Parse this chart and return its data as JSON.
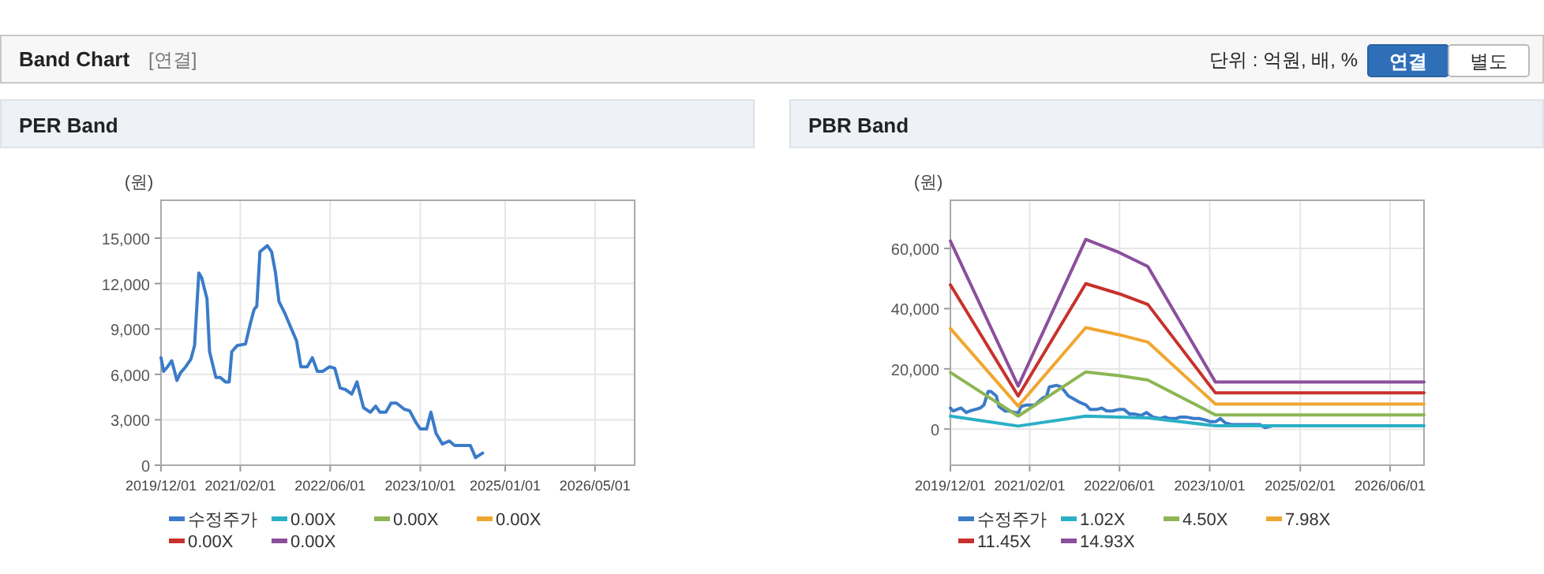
{
  "chart_data": [
    {
      "type": "other",
      "title": "Band Chart",
      "annotations": [
        "[연결]",
        "단위 : 억원, 배, %",
        "연결",
        "별도"
      ]
    },
    {
      "type": "line",
      "title": "PER Band",
      "ylabel": "(원)",
      "grid": true,
      "legend": "bottom",
      "xlim": [
        "2019-12-01",
        "2026-12-01"
      ],
      "xticks": [
        {
          "value": "2019-12-01",
          "label": "2019/12/01"
        },
        {
          "value": "2021-02-01",
          "label": "2021/02/01"
        },
        {
          "value": "2022-06-01",
          "label": "2022/06/01"
        },
        {
          "value": "2023-10-01",
          "label": "2023/10/01"
        },
        {
          "value": "2025-01-01",
          "label": "2025/01/01"
        },
        {
          "value": "2026-05-01",
          "label": "2026/05/01"
        }
      ],
      "ylim": [
        0,
        17500
      ],
      "yticks": [
        0,
        {
          "value": 3000,
          "label": "3,000"
        },
        {
          "value": 6000,
          "label": "6,000"
        },
        {
          "value": 9000,
          "label": "9,000"
        },
        {
          "value": 12000,
          "label": "12,000"
        },
        {
          "value": 15000,
          "label": "15,000"
        }
      ],
      "series": [
        {
          "name": "수정주가",
          "color": "#3b7bc9",
          "x": [
            "2019-12-01",
            "2019-12-15",
            "2020-01-05",
            "2020-01-28",
            "2020-02-25",
            "2020-03-15",
            "2020-04-12",
            "2020-05-10",
            "2020-05-30",
            "2020-06-22",
            "2020-07-07",
            "2020-08-05",
            "2020-08-19",
            "2020-09-22",
            "2020-10-15",
            "2020-11-13",
            "2020-12-03",
            "2020-12-17",
            "2021-01-15",
            "2021-03-01",
            "2021-03-28",
            "2021-04-17",
            "2021-05-01",
            "2021-05-18",
            "2021-06-27",
            "2021-07-20",
            "2021-08-10",
            "2021-08-29",
            "2021-09-27",
            "2021-10-25",
            "2021-12-02",
            "2021-12-25",
            "2022-01-28",
            "2022-02-25",
            "2022-03-24",
            "2022-04-22",
            "2022-05-29",
            "2022-06-26",
            "2022-07-25",
            "2022-08-22",
            "2022-09-26",
            "2022-10-24",
            "2022-11-28",
            "2023-01-04",
            "2023-02-02",
            "2023-02-25",
            "2023-03-29",
            "2023-04-26",
            "2023-05-25",
            "2023-07-06",
            "2023-08-04",
            "2023-09-08",
            "2023-09-30",
            "2023-11-04",
            "2023-11-27",
            "2023-12-25",
            "2024-01-28",
            "2024-03-05",
            "2024-04-03",
            "2024-06-27",
            "2024-07-25",
            "2024-09-01"
          ],
          "values": [
            7100,
            6200,
            6500,
            6900,
            5600,
            6100,
            6500,
            7000,
            7900,
            12700,
            12400,
            11000,
            7500,
            5800,
            5800,
            5500,
            5500,
            7500,
            7900,
            8000,
            9400,
            10300,
            10500,
            14100,
            14500,
            14100,
            12700,
            10800,
            10100,
            9300,
            8200,
            6500,
            6500,
            7100,
            6200,
            6200,
            6500,
            6400,
            5100,
            5000,
            4700,
            5500,
            3800,
            3500,
            3900,
            3500,
            3500,
            4100,
            4100,
            3700,
            3600,
            2800,
            2400,
            2400,
            3500,
            2100,
            1400,
            1600,
            1300,
            1300,
            500,
            800
          ]
        },
        {
          "name": "0.00X",
          "color": "#2ab0c5"
        },
        {
          "name": "0.00X",
          "color": "#8db654"
        },
        {
          "name": "0.00X",
          "color": "#f0a630"
        },
        {
          "name": "0.00X",
          "color": "#c8312c"
        },
        {
          "name": "0.00X",
          "color": "#8c4f9c"
        }
      ]
    },
    {
      "type": "line",
      "title": "PBR Band",
      "ylabel": "(원)",
      "grid": true,
      "legend": "bottom",
      "xlim": [
        "2019-12-01",
        "2026-12-01"
      ],
      "xticks": [
        {
          "value": "2019-12-01",
          "label": "2019/12/01"
        },
        {
          "value": "2021-02-01",
          "label": "2021/02/01"
        },
        {
          "value": "2022-06-01",
          "label": "2022/06/01"
        },
        {
          "value": "2023-10-01",
          "label": "2023/10/01"
        },
        {
          "value": "2025-02-01",
          "label": "2025/02/01"
        },
        {
          "value": "2026-06-01",
          "label": "2026/06/01"
        }
      ],
      "ylim": [
        -12000,
        76000
      ],
      "yticks": [
        0,
        {
          "value": 20000,
          "label": "20,000"
        },
        {
          "value": 40000,
          "label": "40,000"
        },
        {
          "value": 60000,
          "label": "60,000"
        }
      ],
      "series": [
        {
          "name": "수정주가",
          "color": "#3b7bc9",
          "x": [
            "2019-12-01",
            "2019-12-15",
            "2020-01-05",
            "2020-01-28",
            "2020-02-25",
            "2020-03-15",
            "2020-04-12",
            "2020-05-10",
            "2020-05-30",
            "2020-06-22",
            "2020-07-07",
            "2020-08-05",
            "2020-08-19",
            "2020-09-22",
            "2020-10-15",
            "2020-11-13",
            "2020-12-03",
            "2020-12-17",
            "2021-01-15",
            "2021-03-01",
            "2021-03-28",
            "2021-04-17",
            "2021-05-01",
            "2021-05-18",
            "2021-06-27",
            "2021-07-20",
            "2021-08-10",
            "2021-08-29",
            "2021-09-27",
            "2021-10-25",
            "2021-12-02",
            "2021-12-25",
            "2022-01-28",
            "2022-02-25",
            "2022-03-24",
            "2022-04-22",
            "2022-05-29",
            "2022-06-26",
            "2022-07-25",
            "2022-08-22",
            "2022-09-26",
            "2022-10-24",
            "2022-11-28",
            "2023-01-04",
            "2023-02-02",
            "2023-02-25",
            "2023-03-29",
            "2023-04-26",
            "2023-05-25",
            "2023-07-06",
            "2023-08-04",
            "2023-09-08",
            "2023-09-30",
            "2023-11-04",
            "2023-11-27",
            "2023-12-25",
            "2024-01-28",
            "2024-03-05",
            "2024-04-03",
            "2024-06-27",
            "2024-07-25",
            "2024-09-01"
          ],
          "values": [
            7000,
            6000,
            6500,
            7000,
            5500,
            6000,
            6500,
            7000,
            8000,
            12500,
            12500,
            11000,
            7500,
            6000,
            6000,
            5500,
            5500,
            7500,
            8000,
            8000,
            9500,
            10500,
            10500,
            14000,
            14500,
            14000,
            12500,
            11000,
            10000,
            9000,
            8000,
            6500,
            6500,
            7000,
            6000,
            6000,
            6500,
            6500,
            5000,
            5000,
            4500,
            5500,
            4000,
            3500,
            4000,
            3500,
            3500,
            4000,
            4000,
            3500,
            3500,
            3000,
            2500,
            2500,
            3500,
            2000,
            1500,
            1500,
            1500,
            1500,
            500,
            1000
          ]
        },
        {
          "name": "1.02X",
          "color": "#2ab0c5",
          "x": [
            "2019-12-01",
            "2020-12-01",
            "2021-12-01",
            "2022-06-01",
            "2022-11-01",
            "2023-11-01",
            "2026-12-01"
          ],
          "values": [
            4300,
            1000,
            4300,
            4000,
            3700,
            1100,
            1100
          ]
        },
        {
          "name": "4.50X",
          "color": "#8db654",
          "x": [
            "2019-12-01",
            "2020-12-01",
            "2021-12-01",
            "2022-06-01",
            "2022-11-01",
            "2023-11-01",
            "2026-12-01"
          ],
          "values": [
            18800,
            4300,
            19000,
            17700,
            16300,
            4700,
            4700
          ]
        },
        {
          "name": "7.98X",
          "color": "#f0a630",
          "x": [
            "2019-12-01",
            "2020-12-01",
            "2021-12-01",
            "2022-06-01",
            "2022-11-01",
            "2023-11-01",
            "2026-12-01"
          ],
          "values": [
            33400,
            7600,
            33700,
            31300,
            28900,
            8300,
            8300
          ]
        },
        {
          "name": "11.45X",
          "color": "#c8312c",
          "x": [
            "2019-12-01",
            "2020-12-01",
            "2021-12-01",
            "2022-06-01",
            "2022-11-01",
            "2023-11-01",
            "2026-12-01"
          ],
          "values": [
            47900,
            11000,
            48300,
            44900,
            41400,
            12000,
            12000
          ]
        },
        {
          "name": "14.93X",
          "color": "#8c4f9c",
          "x": [
            "2019-12-01",
            "2020-12-01",
            "2021-12-01",
            "2022-06-01",
            "2022-11-01",
            "2023-11-01",
            "2026-12-01"
          ],
          "values": [
            62500,
            14300,
            63000,
            58600,
            54000,
            15600,
            15600
          ]
        }
      ]
    }
  ]
}
